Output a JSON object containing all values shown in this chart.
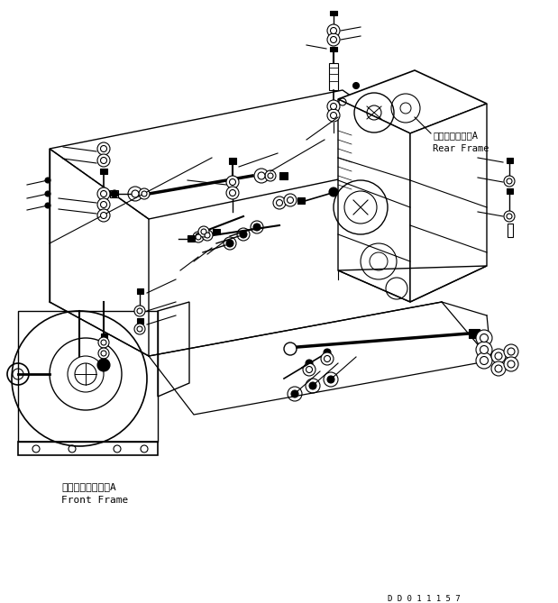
{
  "bg_color": "#ffffff",
  "line_color": "#000000",
  "text_color": "#000000",
  "front_frame_label_jp": "フロントフレームA",
  "front_frame_label_en": "Front Frame",
  "rear_frame_label_jp": "リヤーフレームA",
  "rear_frame_label_en": "Rear Frame",
  "doc_number": "D D 0 1 1 1 5 7",
  "figsize": [
    6.19,
    6.69
  ],
  "dpi": 100
}
